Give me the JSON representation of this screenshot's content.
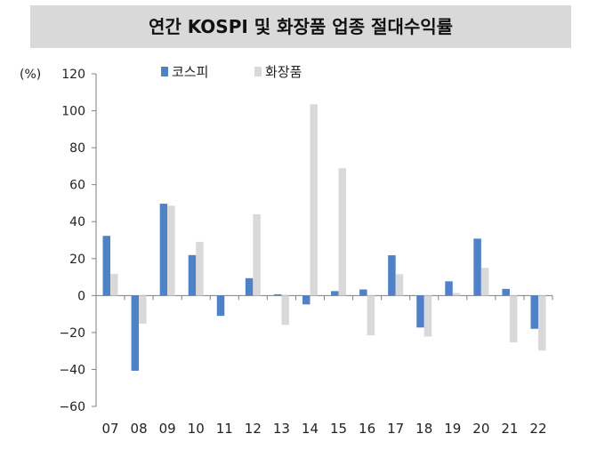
{
  "chart_data": {
    "type": "bar",
    "title": "연간 KOSPI 및 화장품 업종 절대수익률",
    "xlabel": "",
    "ylabel": "",
    "unit_label": "(%)",
    "categories": [
      "07",
      "08",
      "09",
      "10",
      "11",
      "12",
      "13",
      "14",
      "15",
      "16",
      "17",
      "18",
      "19",
      "20",
      "21",
      "22"
    ],
    "series": [
      {
        "name": "코스피",
        "color": "#4f81c7",
        "values": [
          32.3,
          -40.7,
          49.7,
          21.9,
          -11.0,
          9.4,
          0.7,
          -4.8,
          2.4,
          3.3,
          21.8,
          -17.3,
          7.7,
          30.8,
          3.6,
          -18.0
        ]
      },
      {
        "name": "화장품",
        "color": "#d9d9d9",
        "values": [
          11.8,
          -15.2,
          48.6,
          29.1,
          0.0,
          44.0,
          -15.9,
          103.5,
          68.9,
          -21.5,
          11.6,
          -22.2,
          1.4,
          15.0,
          -25.3,
          -29.8
        ]
      }
    ],
    "yticks": [
      "120",
      "100",
      "80",
      "60",
      "40",
      "20",
      "0",
      "-20",
      "-40",
      "-60"
    ],
    "ylim": [
      -60,
      120
    ],
    "grid": false,
    "legend_position": "top"
  }
}
